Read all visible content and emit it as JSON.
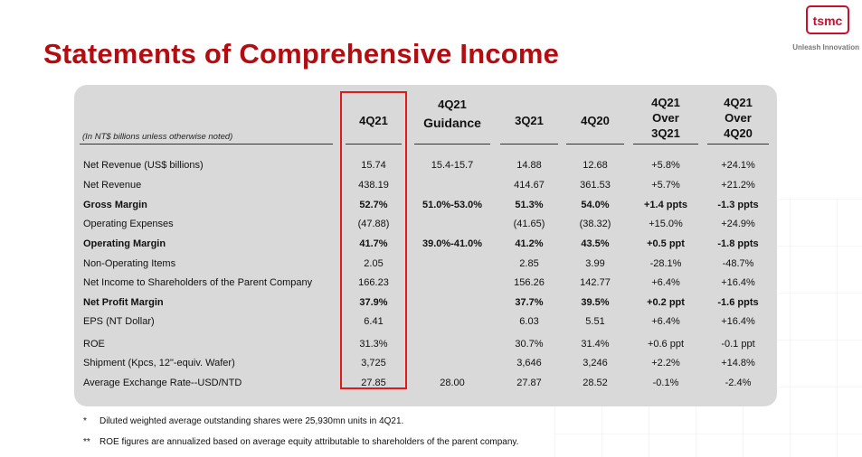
{
  "title": "Statements of Comprehensive Income",
  "logo": {
    "text": "tsmc",
    "tagline": "Unleash Innovation"
  },
  "note": "(In NT$ billions unless otherwise noted)",
  "columns": [
    {
      "line1": "",
      "line2": "4Q21",
      "line3": ""
    },
    {
      "line1": "4Q21",
      "line2": "Guidance",
      "line3": ""
    },
    {
      "line1": "",
      "line2": "3Q21",
      "line3": ""
    },
    {
      "line1": "",
      "line2": "4Q20",
      "line3": ""
    },
    {
      "line1": "4Q21",
      "line2": "Over",
      "line3": "3Q21"
    },
    {
      "line1": "4Q21",
      "line2": "Over",
      "line3": "4Q20"
    }
  ],
  "rows": [
    {
      "label": "Net Revenue (US$ billions)",
      "bold": false,
      "values": [
        "15.74",
        "15.4-15.7",
        "14.88",
        "12.68",
        "+5.8%",
        "+24.1%"
      ]
    },
    {
      "label": "Net Revenue",
      "bold": false,
      "values": [
        "438.19",
        "",
        "414.67",
        "361.53",
        "+5.7%",
        "+21.2%"
      ]
    },
    {
      "label": "Gross Margin",
      "bold": true,
      "values": [
        "52.7%",
        "51.0%-53.0%",
        "51.3%",
        "54.0%",
        "+1.4 ppts",
        "-1.3 ppts"
      ]
    },
    {
      "label": "Operating Expenses",
      "bold": false,
      "values": [
        "(47.88)",
        "",
        "(41.65)",
        "(38.32)",
        "+15.0%",
        "+24.9%"
      ]
    },
    {
      "label": "Operating Margin",
      "bold": true,
      "values": [
        "41.7%",
        "39.0%-41.0%",
        "41.2%",
        "43.5%",
        "+0.5 ppt",
        "-1.8 ppts"
      ]
    },
    {
      "label": "Non-Operating Items",
      "bold": false,
      "values": [
        "2.05",
        "",
        "2.85",
        "3.99",
        "-28.1%",
        "-48.7%"
      ]
    },
    {
      "label": "Net Income to Shareholders of the Parent Company",
      "bold": false,
      "values": [
        "166.23",
        "",
        "156.26",
        "142.77",
        "+6.4%",
        "+16.4%"
      ]
    },
    {
      "label": "Net Profit Margin",
      "bold": true,
      "values": [
        "37.9%",
        "",
        "37.7%",
        "39.5%",
        "+0.2 ppt",
        "-1.6 ppts"
      ]
    },
    {
      "label": "EPS (NT Dollar)",
      "bold": false,
      "values": [
        "6.41",
        "",
        "6.03",
        "5.51",
        "+6.4%",
        "+16.4%"
      ]
    },
    {
      "label": "ROE",
      "bold": false,
      "values": [
        "31.3%",
        "",
        "30.7%",
        "31.4%",
        "+0.6 ppt",
        "-0.1 ppt"
      ]
    },
    {
      "label": "Shipment (Kpcs, 12\"-equiv. Wafer)",
      "bold": false,
      "values": [
        "3,725",
        "",
        "3,646",
        "3,246",
        "+2.2%",
        "+14.8%"
      ]
    },
    {
      "label": "Average Exchange Rate--USD/NTD",
      "bold": false,
      "values": [
        "27.85",
        "28.00",
        "27.87",
        "28.52",
        "-0.1%",
        "-2.4%"
      ]
    }
  ],
  "footnotes": [
    {
      "mark": "*",
      "text": "Diluted weighted average outstanding shares were 25,930mn units in 4Q21."
    },
    {
      "mark": "**",
      "text": "ROE figures are annualized based on average equity attributable to shareholders of the parent company."
    }
  ]
}
